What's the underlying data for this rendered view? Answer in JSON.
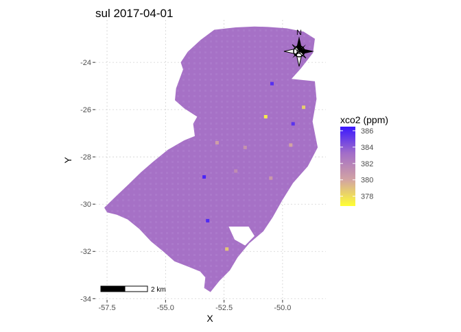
{
  "chart_data": {
    "type": "heatmap",
    "title": "sul 2017-04-01",
    "xlabel": "X",
    "ylabel": "Y",
    "xlim": [
      -58.0,
      -48.15
    ],
    "ylim": [
      -34.05,
      -22.2
    ],
    "x_ticks": [
      -57.5,
      -55.0,
      -52.5,
      -50.0
    ],
    "x_tick_labels": [
      "-57.5",
      "-55.0",
      "-52.5",
      "-50.0"
    ],
    "y_ticks": [
      -34,
      -32,
      -30,
      -28,
      -26,
      -24
    ],
    "y_tick_labels": [
      "-34",
      "-32",
      "-30",
      "-28",
      "-26",
      "-24"
    ],
    "grid": true,
    "legend": {
      "title": "xco2 (ppm)",
      "position": "right",
      "min": 376.8,
      "max": 386.5,
      "ticks": [
        378,
        380,
        382,
        384,
        386
      ],
      "tick_labels": [
        "378",
        "380",
        "382",
        "384",
        "386"
      ],
      "colors": [
        "#ffff33",
        "#d2a3a3",
        "#a26dc9",
        "#3a17ff"
      ]
    },
    "background_value": 383,
    "region_outline": [
      [
        -50.62,
        -22.5
      ],
      [
        -49.82,
        -22.56
      ],
      [
        -49.1,
        -22.7
      ],
      [
        -48.62,
        -23.0
      ],
      [
        -48.7,
        -23.6
      ],
      [
        -49.22,
        -24.26
      ],
      [
        -49.62,
        -24.7
      ],
      [
        -48.62,
        -24.8
      ],
      [
        -48.55,
        -25.55
      ],
      [
        -48.72,
        -26.5
      ],
      [
        -48.5,
        -27.6
      ],
      [
        -48.92,
        -28.4
      ],
      [
        -49.55,
        -29.1
      ],
      [
        -50.02,
        -29.85
      ],
      [
        -50.42,
        -30.55
      ],
      [
        -50.82,
        -31.15
      ],
      [
        -51.42,
        -31.65
      ],
      [
        -51.92,
        -32.25
      ],
      [
        -52.25,
        -32.8
      ],
      [
        -52.7,
        -33.25
      ],
      [
        -53.08,
        -33.72
      ],
      [
        -53.35,
        -33.55
      ],
      [
        -53.3,
        -33.1
      ],
      [
        -53.52,
        -32.85
      ],
      [
        -54.1,
        -32.62
      ],
      [
        -54.62,
        -32.42
      ],
      [
        -55.1,
        -32.0
      ],
      [
        -55.62,
        -31.58
      ],
      [
        -56.12,
        -31.05
      ],
      [
        -56.62,
        -30.65
      ],
      [
        -57.08,
        -30.45
      ],
      [
        -57.5,
        -30.35
      ],
      [
        -57.62,
        -30.15
      ],
      [
        -57.1,
        -29.65
      ],
      [
        -56.6,
        -29.18
      ],
      [
        -56.05,
        -28.65
      ],
      [
        -55.55,
        -28.22
      ],
      [
        -54.9,
        -27.7
      ],
      [
        -54.2,
        -27.3
      ],
      [
        -53.75,
        -27.12
      ],
      [
        -53.82,
        -26.6
      ],
      [
        -53.65,
        -26.3
      ],
      [
        -54.2,
        -25.95
      ],
      [
        -54.6,
        -25.6
      ],
      [
        -54.55,
        -25.1
      ],
      [
        -54.25,
        -24.3
      ],
      [
        -54.35,
        -24.0
      ],
      [
        -54.05,
        -23.55
      ],
      [
        -53.5,
        -23.05
      ],
      [
        -52.92,
        -22.62
      ],
      [
        -52.0,
        -22.52
      ],
      [
        -51.2,
        -22.48
      ]
    ],
    "hole": [
      [
        -52.3,
        -30.95
      ],
      [
        -51.45,
        -30.95
      ],
      [
        -51.2,
        -31.35
      ],
      [
        -51.6,
        -31.75
      ],
      [
        -52.05,
        -31.5
      ]
    ],
    "points": [
      {
        "x": -53.35,
        "y": -28.85,
        "v": 386.0
      },
      {
        "x": -53.2,
        "y": -30.7,
        "v": 385.8
      },
      {
        "x": -50.45,
        "y": -24.9,
        "v": 385.6
      },
      {
        "x": -49.55,
        "y": -26.6,
        "v": 385.5
      },
      {
        "x": -50.72,
        "y": -26.3,
        "v": 377.5
      },
      {
        "x": -49.1,
        "y": -25.9,
        "v": 378.5
      },
      {
        "x": -52.38,
        "y": -31.9,
        "v": 378.8
      },
      {
        "x": -49.65,
        "y": -27.5,
        "v": 380.0
      },
      {
        "x": -52.8,
        "y": -27.4,
        "v": 380.3
      },
      {
        "x": -50.5,
        "y": -28.9,
        "v": 380.6
      },
      {
        "x": -51.6,
        "y": -27.6,
        "v": 381.0
      },
      {
        "x": -52.0,
        "y": -28.6,
        "v": 381.4
      }
    ]
  },
  "scale_bar": {
    "label": "2 km"
  },
  "north_arrow": {
    "label": "N"
  }
}
